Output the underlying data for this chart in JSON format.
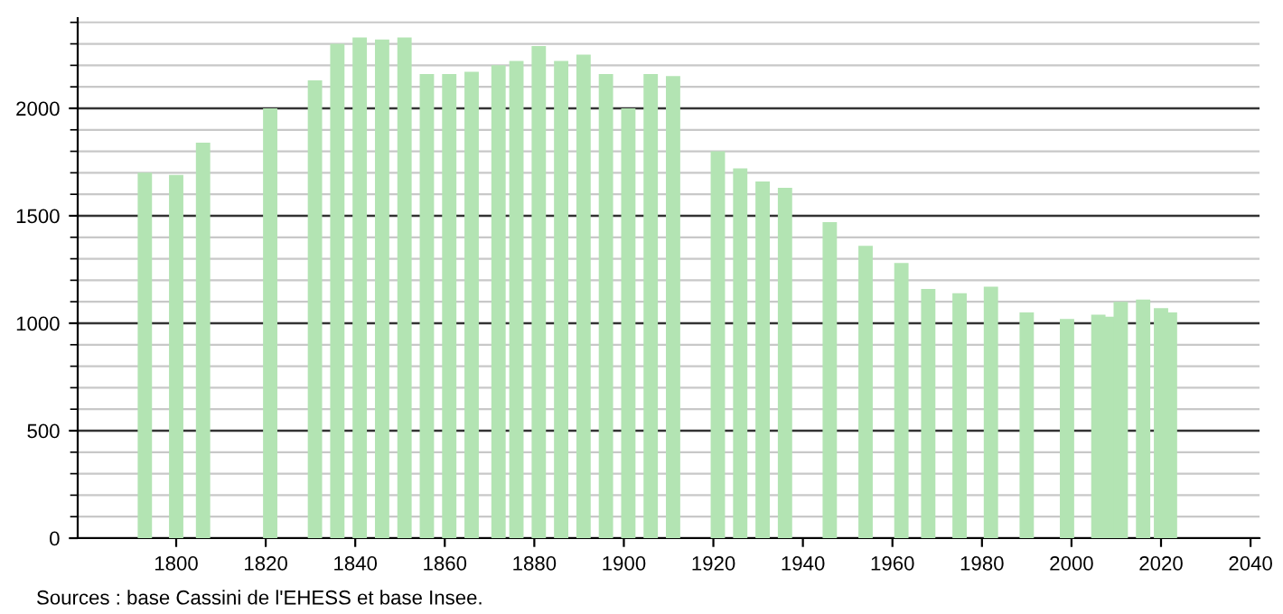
{
  "chart_data": {
    "type": "bar",
    "color": "#b3e4b3",
    "x": [
      1793,
      1800,
      1806,
      1821,
      1831,
      1836,
      1841,
      1846,
      1851,
      1856,
      1861,
      1866,
      1872,
      1876,
      1881,
      1886,
      1891,
      1896,
      1901,
      1906,
      1911,
      1921,
      1926,
      1931,
      1936,
      1946,
      1954,
      1962,
      1968,
      1975,
      1982,
      1990,
      1999,
      2006,
      2008,
      2011,
      2016,
      2020,
      2022
    ],
    "values": [
      1700,
      1690,
      1840,
      2000,
      2130,
      2300,
      2330,
      2320,
      2330,
      2160,
      2160,
      2170,
      2200,
      2220,
      2290,
      2220,
      2250,
      2160,
      2000,
      2160,
      2150,
      1800,
      1720,
      1660,
      1630,
      1470,
      1360,
      1280,
      1160,
      1140,
      1170,
      1050,
      1020,
      1040,
      1030,
      1100,
      1110,
      1070,
      1050
    ],
    "xlim": [
      1778,
      2042
    ],
    "xticks": [
      1800,
      1820,
      1840,
      1860,
      1880,
      1900,
      1920,
      1940,
      1960,
      1980,
      2000,
      2020,
      2040
    ],
    "ylim": [
      0,
      2420
    ],
    "yticks": [
      0,
      500,
      1000,
      1500,
      2000
    ],
    "grid": "y",
    "annotations": [
      "Sources : base Cassini de l'EHESS et base Insee."
    ]
  }
}
